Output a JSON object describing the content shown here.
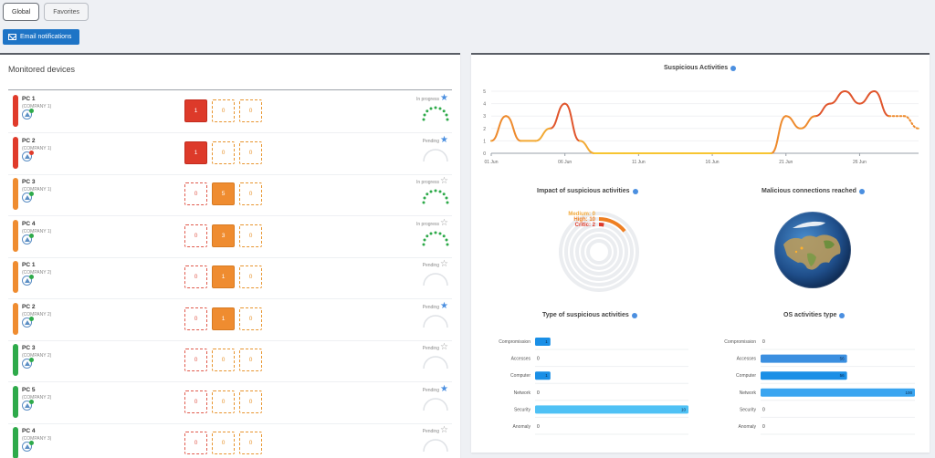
{
  "tabs": [
    {
      "label": "Global",
      "active": true
    },
    {
      "label": "Favorites",
      "active": false
    }
  ],
  "email_button": {
    "label": "Email notifications"
  },
  "monitored": {
    "title": "Monitored devices",
    "devices": [
      {
        "name": "PC 1",
        "company": "(COMPANY 1)",
        "bar_color": "#e03b2b",
        "dot_color": "#2eaa4a",
        "counts": [
          "1",
          "0",
          "0"
        ],
        "boxes": [
          "red-fill",
          "org-out",
          "org-out"
        ],
        "status": "In progress",
        "favorite": true,
        "gauge": "green"
      },
      {
        "name": "PC 2",
        "company": "(COMPANY 1)",
        "bar_color": "#e03b2b",
        "dot_color": "#e03b2b",
        "counts": [
          "1",
          "0",
          "0"
        ],
        "boxes": [
          "red-fill",
          "org-out",
          "org-out"
        ],
        "status": "Pending",
        "favorite": true,
        "gauge": "grey"
      },
      {
        "name": "PC 3",
        "company": "(COMPANY 1)",
        "bar_color": "#ef8c30",
        "dot_color": "#2eaa4a",
        "counts": [
          "0",
          "5",
          "0"
        ],
        "boxes": [
          "red-out",
          "org-fill",
          "org-out"
        ],
        "status": "In progress",
        "favorite": false,
        "gauge": "green"
      },
      {
        "name": "PC 4",
        "company": "(COMPANY 1)",
        "bar_color": "#ef8c30",
        "dot_color": "#2eaa4a",
        "counts": [
          "0",
          "3",
          "0"
        ],
        "boxes": [
          "red-out",
          "org-fill",
          "org-out"
        ],
        "status": "In progress",
        "favorite": false,
        "gauge": "green"
      },
      {
        "name": "PC 1",
        "company": "(COMPANY 2)",
        "bar_color": "#ef8c30",
        "dot_color": "#2eaa4a",
        "counts": [
          "0",
          "1",
          "0"
        ],
        "boxes": [
          "red-out",
          "org-fill",
          "org-out"
        ],
        "status": "Pending",
        "favorite": false,
        "gauge": "grey"
      },
      {
        "name": "PC 2",
        "company": "(COMPANY 2)",
        "bar_color": "#ef8c30",
        "dot_color": "#2eaa4a",
        "counts": [
          "0",
          "1",
          "0"
        ],
        "boxes": [
          "red-out",
          "org-fill",
          "org-out"
        ],
        "status": "Pending",
        "favorite": true,
        "gauge": "grey"
      },
      {
        "name": "PC 3",
        "company": "(COMPANY 2)",
        "bar_color": "#2eaa4a",
        "dot_color": "#2eaa4a",
        "counts": [
          "0",
          "0",
          "0"
        ],
        "boxes": [
          "red-out",
          "org-out",
          "org-out"
        ],
        "status": "Pending",
        "favorite": false,
        "gauge": "grey"
      },
      {
        "name": "PC 5",
        "company": "(COMPANY 2)",
        "bar_color": "#2eaa4a",
        "dot_color": "#2eaa4a",
        "counts": [
          "0",
          "0",
          "0"
        ],
        "boxes": [
          "red-out",
          "org-out",
          "org-out"
        ],
        "status": "Pending",
        "favorite": true,
        "gauge": "grey"
      },
      {
        "name": "PC 4",
        "company": "(COMPANY 3)",
        "bar_color": "#2eaa4a",
        "dot_color": "#2eaa4a",
        "counts": [
          "0",
          "0",
          "0"
        ],
        "boxes": [
          "red-out",
          "org-out",
          "org-out"
        ],
        "status": "Pending",
        "favorite": false,
        "gauge": "grey"
      }
    ]
  },
  "charts": {
    "suspicious": {
      "title": "Suspicious Activities"
    },
    "impact": {
      "title": "Impact of suspicious activities"
    },
    "malicious": {
      "title": "Malicious connections reached"
    },
    "type_activities": {
      "title": "Type of suspicious activities"
    },
    "os_activities": {
      "title": "OS activities type"
    }
  },
  "chart_data": [
    {
      "type": "line",
      "title": "Suspicious Activities",
      "ylim": [
        0,
        5
      ],
      "yticks": [
        "0",
        "1",
        "2",
        "3",
        "4",
        "5"
      ],
      "xticks": [
        "01 Jun",
        "06 Jun",
        "11 Jun",
        "16 Jun",
        "21 Jun",
        "26 Jun"
      ],
      "xtick_days": [
        1,
        6,
        11,
        16,
        21,
        26
      ],
      "x": [
        1,
        2,
        3,
        4,
        5,
        6,
        7,
        8,
        9,
        10,
        11,
        12,
        13,
        14,
        15,
        16,
        17,
        18,
        19,
        20,
        21,
        22,
        23,
        24,
        25,
        26,
        27,
        28,
        29,
        30
      ],
      "values": [
        1,
        3,
        1,
        1,
        2,
        4,
        1,
        0,
        0,
        0,
        0,
        0,
        0,
        0,
        0,
        0,
        0,
        0,
        0,
        0,
        3,
        2,
        3,
        4,
        5,
        4,
        5,
        3,
        3,
        2
      ],
      "dotted_from": 28
    },
    {
      "type": "pie",
      "title": "Impact of suspicious activities",
      "series": [
        {
          "name": "Medium",
          "value": 0,
          "color": "#f2a93b"
        },
        {
          "name": "High",
          "value": 10,
          "color": "#ef7f22"
        },
        {
          "name": "Critic",
          "value": 2,
          "color": "#dd3a2a"
        }
      ]
    },
    {
      "type": "bar",
      "title": "Type of suspicious activities",
      "categories": [
        "Compromission",
        "Accesses",
        "Computer",
        "Network",
        "Security",
        "Anomaly"
      ],
      "values": [
        1,
        0,
        1,
        0,
        10,
        0
      ],
      "max": 10,
      "colors": [
        "#1a8fe6",
        "#1a8fe6",
        "#1a8fe6",
        "#1a8fe6",
        "#4fc1f5",
        "#1a8fe6"
      ]
    },
    {
      "type": "bar",
      "title": "OS activities type",
      "categories": [
        "Compromission",
        "Accesses",
        "Computer",
        "Network",
        "Security",
        "Anomaly"
      ],
      "values": [
        0,
        56,
        56,
        100,
        0,
        0
      ],
      "max": 100,
      "colors": [
        "#1a8fe6",
        "#3b8fe0",
        "#1a8fe6",
        "#3aa5f0",
        "#1a8fe6",
        "#1a8fe6"
      ]
    }
  ]
}
